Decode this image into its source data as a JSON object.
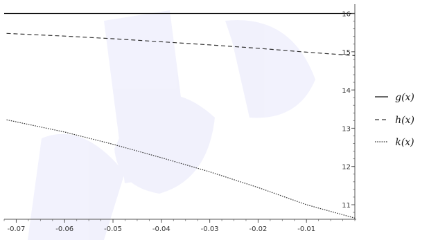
{
  "chart_data": {
    "type": "line",
    "xlim": [
      -0.0725,
      0.0
    ],
    "ylim": [
      10.62,
      16.1
    ],
    "x_ticks": [
      -0.07,
      -0.06,
      -0.05,
      -0.04,
      -0.03,
      -0.02,
      -0.01
    ],
    "x_tick_labels": [
      "-0.07",
      "-0.06",
      "-0.05",
      "-0.04",
      "-0.03",
      "-0.02",
      "-0.01"
    ],
    "y_ticks": [
      11,
      12,
      13,
      14,
      15,
      16
    ],
    "y_tick_labels": [
      "11",
      "12",
      "13",
      "14",
      "15",
      "16"
    ],
    "axes_origin": {
      "x": 0.0,
      "y": 10.62
    },
    "grid": false,
    "legend_position": "right",
    "series": [
      {
        "name": "g(x)",
        "style": "solid",
        "color": "#111111",
        "points": [
          [
            -0.0725,
            16.0
          ],
          [
            0.0,
            16.0
          ]
        ]
      },
      {
        "name": "h(x)",
        "style": "dashed",
        "color": "#333333",
        "points": [
          [
            -0.072,
            15.48
          ],
          [
            -0.06,
            15.41
          ],
          [
            -0.05,
            15.34
          ],
          [
            -0.04,
            15.26
          ],
          [
            -0.03,
            15.18
          ],
          [
            -0.02,
            15.09
          ],
          [
            -0.01,
            14.99
          ],
          [
            0.0,
            14.9
          ]
        ]
      },
      {
        "name": "k(x)",
        "style": "dotted",
        "color": "#333333",
        "points": [
          [
            -0.072,
            13.22
          ],
          [
            -0.06,
            12.9
          ],
          [
            -0.05,
            12.58
          ],
          [
            -0.04,
            12.23
          ],
          [
            -0.03,
            11.86
          ],
          [
            -0.02,
            11.45
          ],
          [
            -0.01,
            11.0
          ],
          [
            0.0,
            10.65
          ]
        ]
      }
    ]
  }
}
